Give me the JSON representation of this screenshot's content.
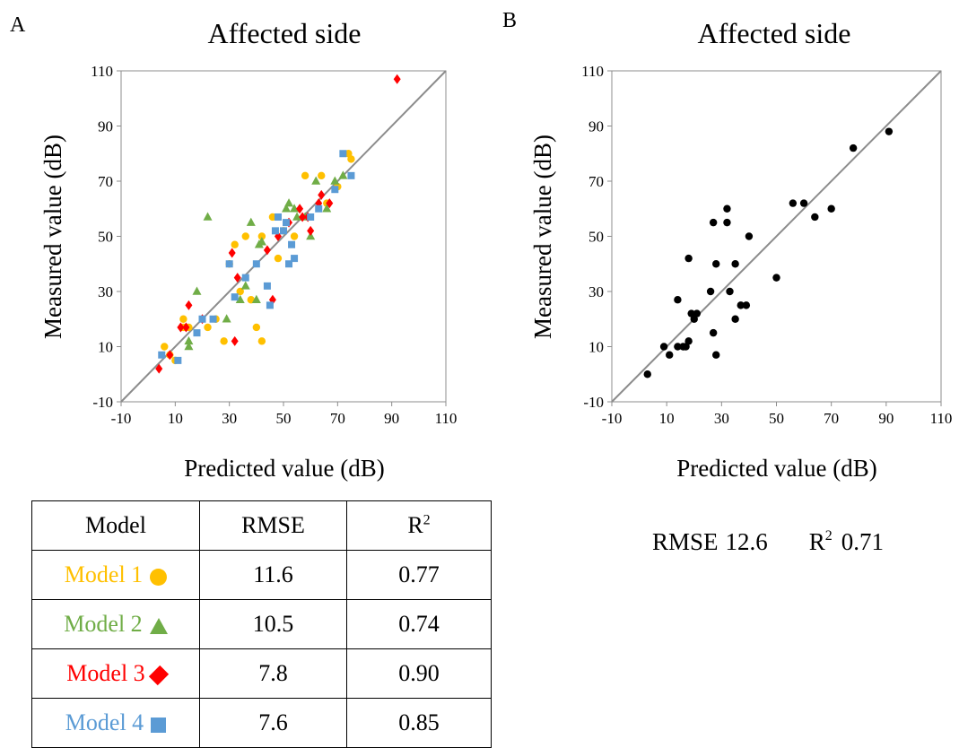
{
  "colors": {
    "model1": "#ffc000",
    "model2": "#70ad47",
    "model3": "#ff0000",
    "model4": "#5b9bd5",
    "point_b": "#000000",
    "identity_line": "#8c8c8c"
  },
  "panels": [
    {
      "letter": "A",
      "title": "Affected side",
      "xlabel": "Predicted value (dB)",
      "ylabel": "Measured value (dB)"
    },
    {
      "letter": "B",
      "title": "Affected side",
      "xlabel": "Predicted value (dB)",
      "ylabel": "Measured value (dB)"
    }
  ],
  "stats_b": {
    "rmse_label": "RMSE",
    "rmse_value": "12.6",
    "r2_label": "R",
    "r2_sup": "2",
    "r2_value": "0.71"
  },
  "table": {
    "headers": [
      "Model",
      "RMSE",
      "R",
      "2"
    ],
    "rows": [
      {
        "model": "Model 1",
        "shape": "circle-icon",
        "rmse": "11.6",
        "r2": "0.77"
      },
      {
        "model": "Model 2",
        "shape": "triangle-icon",
        "rmse": "10.5",
        "r2": "0.74"
      },
      {
        "model": "Model 3",
        "shape": "diamond-icon",
        "rmse": "7.8",
        "r2": "0.90"
      },
      {
        "model": "Model 4",
        "shape": "square-icon",
        "rmse": "7.6",
        "r2": "0.85"
      }
    ]
  },
  "chart_data": [
    {
      "type": "scatter",
      "title": "Affected side",
      "xlabel": "Predicted value (dB)",
      "ylabel": "Measured value (dB)",
      "xlim": [
        -10,
        110
      ],
      "ylim": [
        -10,
        110
      ],
      "xticks": [
        -10,
        10,
        30,
        50,
        70,
        90,
        110
      ],
      "yticks": [
        -10,
        10,
        30,
        50,
        70,
        90,
        110
      ],
      "identity_line": true,
      "grid": false,
      "series": [
        {
          "name": "Model 1",
          "marker": "circle",
          "color": "#ffc000",
          "points": [
            [
              6,
              10
            ],
            [
              8,
              7
            ],
            [
              10,
              5
            ],
            [
              13,
              20
            ],
            [
              13,
              17
            ],
            [
              15,
              17
            ],
            [
              22,
              17
            ],
            [
              25,
              20
            ],
            [
              28,
              12
            ],
            [
              30,
              40
            ],
            [
              32,
              47
            ],
            [
              34,
              30
            ],
            [
              36,
              50
            ],
            [
              38,
              27
            ],
            [
              40,
              17
            ],
            [
              42,
              12
            ],
            [
              42,
              50
            ],
            [
              46,
              57
            ],
            [
              48,
              42
            ],
            [
              50,
              52
            ],
            [
              54,
              50
            ],
            [
              58,
              72
            ],
            [
              64,
              72
            ],
            [
              66,
              62
            ],
            [
              70,
              68
            ],
            [
              74,
              80
            ],
            [
              75,
              78
            ]
          ]
        },
        {
          "name": "Model 2",
          "marker": "triangle",
          "color": "#70ad47",
          "points": [
            [
              15,
              10
            ],
            [
              15,
              12
            ],
            [
              18,
              30
            ],
            [
              22,
              57
            ],
            [
              29,
              20
            ],
            [
              34,
              27
            ],
            [
              36,
              32
            ],
            [
              38,
              55
            ],
            [
              40,
              27
            ],
            [
              41,
              47
            ],
            [
              42,
              48
            ],
            [
              51,
              60
            ],
            [
              52,
              62
            ],
            [
              54,
              60
            ],
            [
              55,
              57
            ],
            [
              58,
              57
            ],
            [
              60,
              50
            ],
            [
              62,
              70
            ],
            [
              66,
              60
            ],
            [
              69,
              70
            ],
            [
              72,
              72
            ]
          ]
        },
        {
          "name": "Model 3",
          "marker": "diamond",
          "color": "#ff0000",
          "points": [
            [
              4,
              2
            ],
            [
              8,
              7
            ],
            [
              12,
              17
            ],
            [
              14,
              17
            ],
            [
              15,
              25
            ],
            [
              20,
              20
            ],
            [
              31,
              44
            ],
            [
              32,
              12
            ],
            [
              33,
              35
            ],
            [
              44,
              45
            ],
            [
              46,
              27
            ],
            [
              48,
              50
            ],
            [
              52,
              55
            ],
            [
              56,
              60
            ],
            [
              57,
              57
            ],
            [
              59,
              57
            ],
            [
              60,
              52
            ],
            [
              63,
              62
            ],
            [
              64,
              65
            ],
            [
              67,
              62
            ],
            [
              92,
              107
            ]
          ]
        },
        {
          "name": "Model 4",
          "marker": "square",
          "color": "#5b9bd5",
          "points": [
            [
              5,
              7
            ],
            [
              11,
              5
            ],
            [
              18,
              15
            ],
            [
              20,
              20
            ],
            [
              24,
              20
            ],
            [
              30,
              40
            ],
            [
              32,
              28
            ],
            [
              36,
              35
            ],
            [
              40,
              40
            ],
            [
              44,
              32
            ],
            [
              45,
              25
            ],
            [
              47,
              52
            ],
            [
              48,
              57
            ],
            [
              50,
              52
            ],
            [
              51,
              55
            ],
            [
              52,
              40
            ],
            [
              53,
              47
            ],
            [
              54,
              42
            ],
            [
              60,
              57
            ],
            [
              63,
              60
            ],
            [
              69,
              67
            ],
            [
              72,
              80
            ],
            [
              75,
              72
            ]
          ]
        }
      ]
    },
    {
      "type": "scatter",
      "title": "Affected side",
      "xlabel": "Predicted value (dB)",
      "ylabel": "Measured value (dB)",
      "xlim": [
        -10,
        110
      ],
      "ylim": [
        -10,
        110
      ],
      "xticks": [
        -10,
        10,
        30,
        50,
        70,
        90,
        110
      ],
      "yticks": [
        -10,
        10,
        30,
        50,
        70,
        90,
        110
      ],
      "identity_line": true,
      "grid": false,
      "series": [
        {
          "name": "",
          "marker": "circle",
          "color": "#000000",
          "points": [
            [
              3,
              0
            ],
            [
              9,
              10
            ],
            [
              11,
              7
            ],
            [
              14,
              27
            ],
            [
              14,
              10
            ],
            [
              16,
              10
            ],
            [
              17,
              10
            ],
            [
              18,
              12
            ],
            [
              18,
              42
            ],
            [
              19,
              22
            ],
            [
              20,
              20
            ],
            [
              21,
              22
            ],
            [
              26,
              30
            ],
            [
              27,
              15
            ],
            [
              27,
              55
            ],
            [
              28,
              40
            ],
            [
              28,
              7
            ],
            [
              32,
              55
            ],
            [
              32,
              60
            ],
            [
              33,
              30
            ],
            [
              35,
              40
            ],
            [
              35,
              20
            ],
            [
              37,
              25
            ],
            [
              39,
              25
            ],
            [
              40,
              50
            ],
            [
              50,
              35
            ],
            [
              56,
              62
            ],
            [
              60,
              62
            ],
            [
              64,
              57
            ],
            [
              70,
              60
            ],
            [
              78,
              82
            ],
            [
              91,
              88
            ]
          ]
        }
      ]
    }
  ]
}
